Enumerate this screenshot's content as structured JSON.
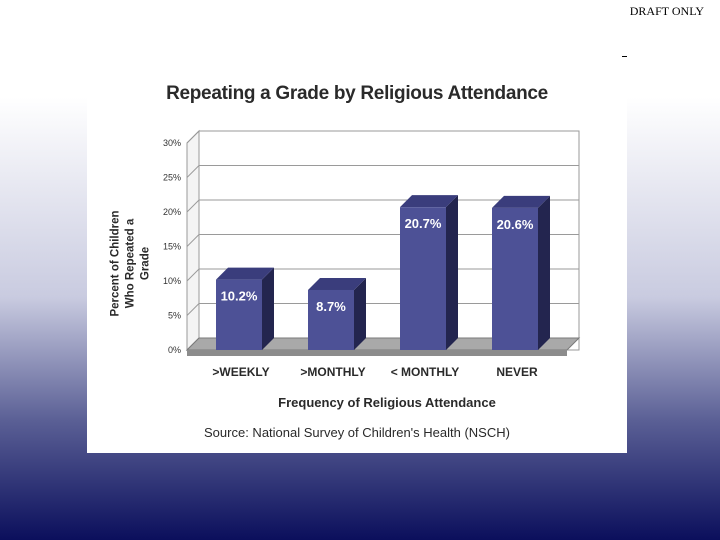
{
  "header": {
    "draft_label": "DRAFT ONLY"
  },
  "colors": {
    "bar_front": "#4d5196",
    "bar_top": "#3a3d7c",
    "bar_side": "#23254f",
    "grid": "#9a9a9a"
  },
  "chart_data": {
    "type": "bar",
    "title": "Repeating a Grade by Religious Attendance",
    "xlabel": "Frequency of Religious Attendance",
    "ylabel_line1": "Percent of Children",
    "ylabel_line2": "Who Repeated a Grade",
    "source": "Source: National Survey of Children's Health (NSCH)",
    "categories": [
      ">WEEKLY",
      ">MONTHLY",
      "< MONTHLY",
      "NEVER"
    ],
    "values": [
      10.2,
      8.7,
      20.7,
      20.6
    ],
    "value_labels": [
      "10.2%",
      "8.7%",
      "20.7%",
      "20.6%"
    ],
    "yticks": [
      "0%",
      "5%",
      "10%",
      "15%",
      "20%",
      "25%",
      "30%"
    ],
    "ylim": [
      0,
      30
    ],
    "grid": true,
    "style": "3d"
  }
}
